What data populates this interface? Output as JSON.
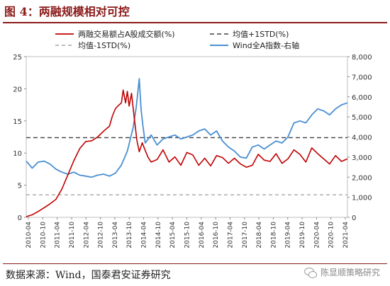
{
  "title": "图 4：两融规模相对可控",
  "source": "数据来源：Wind，国泰君安证券研究",
  "watermark": "陈显顺策略研究",
  "colors": {
    "title": "#8b1a1a",
    "red": "#c00000",
    "blue": "#4a8fd2",
    "upper": "#404040",
    "lower": "#a6a6a6"
  },
  "chart_data": {
    "type": "line",
    "legend": [
      "两融交易额占A股成交额(%)",
      "均值+1STD(%)",
      "均值-1STD(%)",
      "Wind全A指数-右轴"
    ],
    "legend_position": "top",
    "x_ticks": [
      "2010-04",
      "2010-10",
      "2011-04",
      "2011-10",
      "2012-04",
      "2012-10",
      "2013-04",
      "2013-10",
      "2014-04",
      "2014-10",
      "2015-04",
      "2015-10",
      "2016-04",
      "2016-10",
      "2017-04",
      "2017-10",
      "2018-04",
      "2018-10",
      "2019-04",
      "2019-10",
      "2020-04",
      "2020-10",
      "2021-04"
    ],
    "y_left": {
      "ticks": [
        "0",
        "5",
        "10",
        "15",
        "20",
        "25"
      ],
      "range": [
        0,
        25
      ]
    },
    "y_right": {
      "ticks": [
        "0",
        "1,000",
        "2,000",
        "3,000",
        "4,000",
        "5,000",
        "6,000",
        "7,000",
        "8,000"
      ],
      "range": [
        0,
        8000
      ]
    },
    "grid": false,
    "series": [
      {
        "name": "两融交易额占A股成交额(%)",
        "axis": "left",
        "points": [
          [
            0,
            0.1
          ],
          [
            1,
            0.4
          ],
          [
            2,
            0.9
          ],
          [
            3,
            1.5
          ],
          [
            4,
            2.1
          ],
          [
            5,
            2.8
          ],
          [
            6,
            4.4
          ],
          [
            7,
            6.6
          ],
          [
            8,
            8.8
          ],
          [
            9,
            10.7
          ],
          [
            10,
            11.8
          ],
          [
            11,
            11.9
          ],
          [
            12,
            12.5
          ],
          [
            13,
            13.4
          ],
          [
            14,
            14.2
          ],
          [
            14.5,
            15.8
          ],
          [
            15,
            16.9
          ],
          [
            15.5,
            17.4
          ],
          [
            16,
            17.8
          ],
          [
            16.3,
            19.8
          ],
          [
            16.7,
            17.8
          ],
          [
            17,
            19.6
          ],
          [
            17.3,
            17.3
          ],
          [
            17.7,
            19.3
          ],
          [
            18,
            16.8
          ],
          [
            18.3,
            14.4
          ],
          [
            18.6,
            12.0
          ],
          [
            19,
            10.2
          ],
          [
            19.5,
            11.6
          ],
          [
            20,
            10.4
          ],
          [
            20.5,
            9.3
          ],
          [
            21,
            8.6
          ],
          [
            22,
            9.0
          ],
          [
            23,
            10.5
          ],
          [
            24,
            8.6
          ],
          [
            25,
            9.4
          ],
          [
            26,
            8.1
          ],
          [
            27,
            10.1
          ],
          [
            28,
            9.7
          ],
          [
            29,
            8.1
          ],
          [
            30,
            9.2
          ],
          [
            31,
            8.0
          ],
          [
            32,
            9.6
          ],
          [
            33,
            9.3
          ],
          [
            34,
            8.4
          ],
          [
            35,
            9.2
          ],
          [
            36,
            8.3
          ],
          [
            37,
            7.8
          ],
          [
            38,
            8.1
          ],
          [
            39,
            9.8
          ],
          [
            40,
            8.9
          ],
          [
            41,
            8.7
          ],
          [
            42,
            9.9
          ],
          [
            43,
            8.4
          ],
          [
            44,
            9.1
          ],
          [
            45,
            10.5
          ],
          [
            46,
            9.8
          ],
          [
            47,
            8.6
          ],
          [
            48,
            10.8
          ],
          [
            49,
            9.9
          ],
          [
            50,
            9.1
          ],
          [
            51,
            8.3
          ],
          [
            52,
            9.6
          ],
          [
            53,
            8.7
          ],
          [
            54,
            9.1
          ]
        ]
      },
      {
        "name": "均值+1STD(%)",
        "axis": "left",
        "points": [
          [
            0,
            12.4
          ],
          [
            54,
            12.4
          ]
        ]
      },
      {
        "name": "均值-1STD(%)",
        "axis": "left",
        "points": [
          [
            0,
            3.5
          ],
          [
            54,
            3.5
          ]
        ]
      },
      {
        "name": "Wind全A指数-右轴",
        "axis": "right",
        "points": [
          [
            0,
            2800
          ],
          [
            1,
            2450
          ],
          [
            2,
            2750
          ],
          [
            3,
            2800
          ],
          [
            4,
            2650
          ],
          [
            5,
            2400
          ],
          [
            6,
            2250
          ],
          [
            7,
            2150
          ],
          [
            8,
            2250
          ],
          [
            9,
            2100
          ],
          [
            10,
            2050
          ],
          [
            11,
            2000
          ],
          [
            12,
            2100
          ],
          [
            13,
            2150
          ],
          [
            14,
            2050
          ],
          [
            15,
            2200
          ],
          [
            16,
            2600
          ],
          [
            17,
            3300
          ],
          [
            18,
            4500
          ],
          [
            18.5,
            5500
          ],
          [
            19,
            6900
          ],
          [
            19.3,
            5400
          ],
          [
            19.6,
            4600
          ],
          [
            20,
            3700
          ],
          [
            20.5,
            3900
          ],
          [
            21,
            4100
          ],
          [
            22,
            3600
          ],
          [
            23,
            3900
          ],
          [
            24,
            4000
          ],
          [
            25,
            4100
          ],
          [
            26,
            3900
          ],
          [
            27,
            4000
          ],
          [
            28,
            4100
          ],
          [
            29,
            4300
          ],
          [
            30,
            4400
          ],
          [
            31,
            4100
          ],
          [
            32,
            4300
          ],
          [
            33,
            3800
          ],
          [
            34,
            3500
          ],
          [
            35,
            3300
          ],
          [
            36,
            3000
          ],
          [
            37,
            2950
          ],
          [
            38,
            3500
          ],
          [
            39,
            3600
          ],
          [
            40,
            3400
          ],
          [
            41,
            3600
          ],
          [
            42,
            3800
          ],
          [
            43,
            3700
          ],
          [
            44,
            4000
          ],
          [
            45,
            4700
          ],
          [
            46,
            4800
          ],
          [
            47,
            4700
          ],
          [
            48,
            5100
          ],
          [
            49,
            5400
          ],
          [
            50,
            5300
          ],
          [
            51,
            5100
          ],
          [
            52,
            5400
          ],
          [
            53,
            5600
          ],
          [
            54,
            5700
          ]
        ]
      }
    ]
  }
}
